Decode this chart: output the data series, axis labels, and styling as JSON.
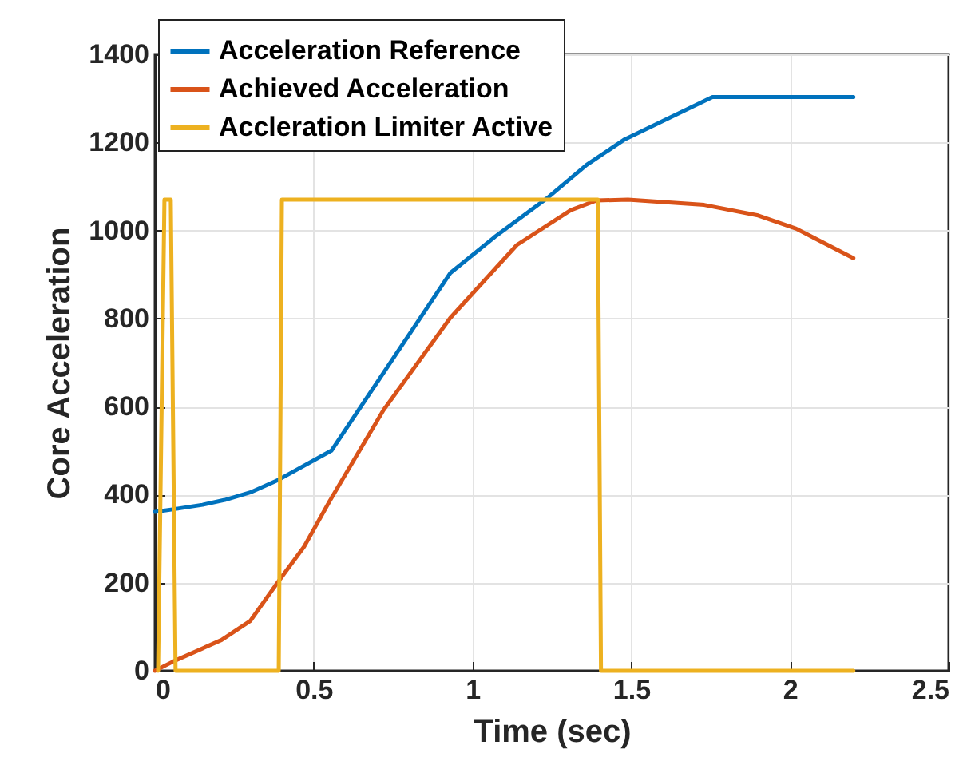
{
  "chart_data": {
    "type": "line",
    "xlabel": "Time (sec)",
    "ylabel": "Core Acceleration",
    "xlim": [
      0,
      2.5
    ],
    "xticks": [
      0,
      0.5,
      1,
      1.5,
      2,
      2.5
    ],
    "ylim": [
      0,
      1400
    ],
    "yticks": [
      0,
      200,
      400,
      600,
      800,
      1000,
      1200,
      1400
    ],
    "grid": true,
    "legend": "top left",
    "series": [
      {
        "name": "Acceleration Reference",
        "color": "#0072bd",
        "x": [
          0,
          0.06,
          0.15,
          0.22,
          0.3,
          0.39,
          0.556,
          0.93,
          1.07,
          1.24,
          1.36,
          1.48,
          1.756,
          2.2
        ],
        "values": [
          361,
          367,
          377,
          388,
          405,
          434,
          500,
          903,
          985,
          1076,
          1149,
          1207,
          1303,
          1303
        ]
      },
      {
        "name": "Achieved Acceleration",
        "color": "#d95319",
        "x": [
          0,
          0.06,
          0.21,
          0.3,
          0.39,
          0.47,
          0.55,
          0.72,
          0.93,
          1.14,
          1.31,
          1.39,
          1.49,
          1.73,
          1.9,
          2.02,
          2.2
        ],
        "values": [
          0,
          22,
          70,
          113,
          204,
          282,
          385,
          592,
          801,
          967,
          1046,
          1068,
          1070,
          1058,
          1034,
          1004,
          937
        ]
      },
      {
        "name": "Accleration Limiter Active",
        "color": "#edb120",
        "x": [
          0.01,
          0.03,
          0.05,
          0.065,
          0.39,
          0.4,
          1.395,
          1.405,
          2.2
        ],
        "values": [
          0,
          1070,
          1070,
          0,
          0,
          1070,
          1070,
          0,
          0
        ]
      }
    ]
  }
}
